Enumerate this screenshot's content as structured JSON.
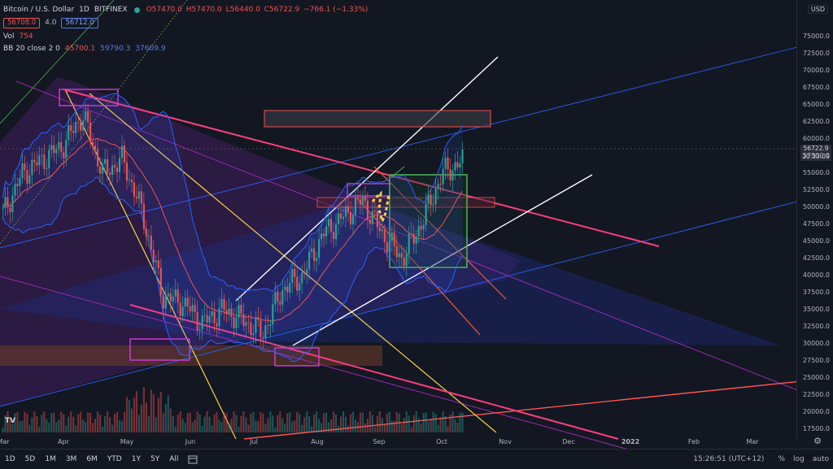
{
  "header": {
    "symbol": "Bitcoin / U.S. Dollar",
    "interval": "1D",
    "exchange": "BITFINEX",
    "ohlc": {
      "o": "O57470.0",
      "h": "H57470.0",
      "l": "L56440.0",
      "c": "C56722.9",
      "change": "−766.1 (−1.33%)"
    },
    "sell_price": "56708.0",
    "spread": "4.0",
    "buy_price": "56712.0"
  },
  "indicators": {
    "vol_label": "Vol",
    "vol_value": "754",
    "bb_label": "BB 20 close 2 0",
    "bb_basis": "45700.1",
    "bb_upper": "59790.3",
    "bb_lower": "37609.9"
  },
  "y_axis": {
    "currency": "USD",
    "labels": [
      "75000.0",
      "72500.0",
      "70000.0",
      "67500.0",
      "65000.0",
      "62500.0",
      "60000.0",
      "57500.0",
      "55000.0",
      "52500.0",
      "50000.0",
      "47500.0",
      "45000.0",
      "42500.0",
      "40000.0",
      "37500.0",
      "35000.0",
      "32500.0",
      "30000.0",
      "27500.0",
      "25000.0",
      "22500.0",
      "20000.0",
      "17500.0"
    ],
    "current_price": "56722.9",
    "countdown": "20:33:09"
  },
  "x_axis": {
    "labels": [
      "Mar",
      "Apr",
      "May",
      "Jun",
      "Jul",
      "Aug",
      "Sep",
      "Oct",
      "Nov",
      "Dec",
      "2022",
      "Feb",
      "Mar"
    ]
  },
  "bottom_bar": {
    "timeframes": [
      "1D",
      "5D",
      "1M",
      "3M",
      "6M",
      "YTD",
      "1Y",
      "5Y",
      "All"
    ],
    "time": "15:26:51 (UTC+12)",
    "options": [
      "%",
      "log",
      "auto"
    ]
  },
  "chart_data": {
    "type": "candlestick",
    "candles_sampled": [
      {
        "x": "Mar",
        "close": 49000
      },
      {
        "x": "Mar",
        "close": 55000
      },
      {
        "x": "Mar",
        "close": 57000
      },
      {
        "x": "Apr",
        "close": 59000
      },
      {
        "x": "Apr",
        "close": 63500
      },
      {
        "x": "Apr",
        "close": 55000
      },
      {
        "x": "May",
        "close": 57000
      },
      {
        "x": "May",
        "close": 49000
      },
      {
        "x": "May",
        "close": 37000
      },
      {
        "x": "Jun",
        "close": 36000
      },
      {
        "x": "Jun",
        "close": 33000
      },
      {
        "x": "Jun",
        "close": 35000
      },
      {
        "x": "Jul",
        "close": 33500
      },
      {
        "x": "Jul",
        "close": 31500
      },
      {
        "x": "Jul",
        "close": 38000
      },
      {
        "x": "Aug",
        "close": 40000
      },
      {
        "x": "Aug",
        "close": 46000
      },
      {
        "x": "Aug",
        "close": 48500
      },
      {
        "x": "Sep",
        "close": 51000
      },
      {
        "x": "Sep",
        "close": 46000
      },
      {
        "x": "Sep",
        "close": 42500
      },
      {
        "x": "Oct",
        "close": 48000
      },
      {
        "x": "Oct",
        "close": 55000
      },
      {
        "x": "Oct",
        "close": 56722.9
      }
    ],
    "ylim": [
      17500,
      75000
    ],
    "colors": {
      "up": "#26a69a",
      "down": "#ef5350",
      "bb": "#2962ff",
      "pink": "#ff3d7f",
      "yellow": "#f5d547",
      "purple": "#9c27b0",
      "white": "#ffffff",
      "green": "#4caf50"
    }
  }
}
